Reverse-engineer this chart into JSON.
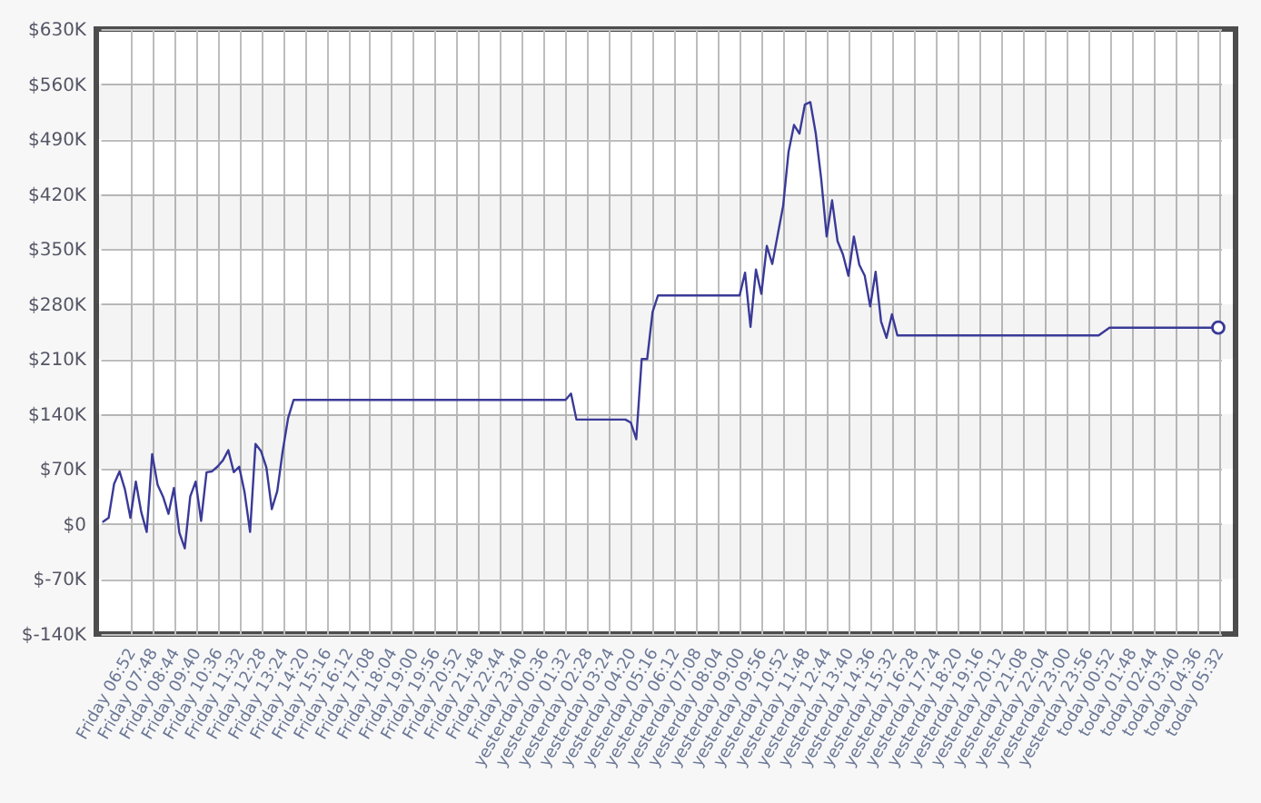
{
  "chart_data": {
    "type": "line",
    "categories": [
      null,
      null,
      null,
      null,
      null,
      "Friday 06:52",
      null,
      null,
      null,
      "Friday 07:48",
      null,
      null,
      null,
      "Friday 08:44",
      null,
      null,
      null,
      "Friday 09:40",
      null,
      null,
      null,
      "Friday 10:36",
      null,
      null,
      null,
      "Friday 11:32",
      null,
      null,
      null,
      "Friday 12:28",
      null,
      null,
      null,
      "Friday 13:24",
      null,
      null,
      null,
      "Friday 14:20",
      null,
      null,
      null,
      "Friday 15:16",
      null,
      null,
      null,
      "Friday 16:12",
      null,
      null,
      null,
      "Friday 17:08",
      null,
      null,
      null,
      "Friday 18:04",
      null,
      null,
      null,
      "Friday 19:00",
      null,
      null,
      null,
      "Friday 19:56",
      null,
      null,
      null,
      "Friday 20:52",
      null,
      null,
      null,
      "Friday 21:48",
      null,
      null,
      null,
      "Friday 22:44",
      null,
      null,
      null,
      "Friday 23:40",
      null,
      null,
      null,
      "yesterday 00:36",
      null,
      null,
      null,
      "yesterday 01:32",
      null,
      null,
      null,
      "yesterday 02:28",
      null,
      null,
      null,
      "yesterday 03:24",
      null,
      null,
      null,
      "yesterday 04:20",
      null,
      null,
      null,
      "yesterday 05:16",
      null,
      null,
      null,
      "yesterday 06:12",
      null,
      null,
      null,
      "yesterday 07:08",
      null,
      null,
      null,
      "yesterday 08:04",
      null,
      null,
      null,
      "yesterday 09:00",
      null,
      null,
      null,
      "yesterday 09:56",
      null,
      null,
      null,
      "yesterday 10:52",
      null,
      null,
      null,
      "yesterday 11:48",
      null,
      null,
      null,
      "yesterday 12:44",
      null,
      null,
      null,
      "yesterday 13:40",
      null,
      null,
      null,
      "yesterday 14:36",
      null,
      null,
      null,
      "yesterday 15:32",
      null,
      null,
      null,
      "yesterday 16:28",
      null,
      null,
      null,
      "yesterday 17:24",
      null,
      null,
      null,
      "yesterday 18:20",
      null,
      null,
      null,
      "yesterday 19:16",
      null,
      null,
      null,
      "yesterday 20:12",
      null,
      null,
      null,
      "yesterday 21:08",
      null,
      null,
      null,
      "yesterday 22:04",
      null,
      null,
      null,
      "yesterday 23:00",
      null,
      null,
      null,
      "yesterday 23:56",
      null,
      null,
      null,
      "today 00:52",
      null,
      null,
      null,
      "today 01:48",
      null,
      null,
      null,
      "today 02:44",
      null,
      null,
      null,
      "today 03:40",
      null,
      null,
      null,
      "today 04:36",
      null,
      null,
      null,
      "today 05:32"
    ],
    "ylim": [
      -140,
      630
    ],
    "yticks": [
      {
        "value": -140,
        "label": "$-140K"
      },
      {
        "value": -70,
        "label": "$-70K"
      },
      {
        "value": 0,
        "label": "$0"
      },
      {
        "value": 70,
        "label": "$70K"
      },
      {
        "value": 140,
        "label": "$140K"
      },
      {
        "value": 210,
        "label": "$210K"
      },
      {
        "value": 280,
        "label": "$280K"
      },
      {
        "value": 350,
        "label": "$350K"
      },
      {
        "value": 420,
        "label": "$420K"
      },
      {
        "value": 490,
        "label": "$490K"
      },
      {
        "value": 560,
        "label": "$560K"
      },
      {
        "value": 630,
        "label": "$630K"
      }
    ],
    "grid": true,
    "bands": [
      {
        "axis": "y",
        "from": 490,
        "to": 560,
        "color": "#f4f4f4"
      },
      {
        "axis": "y",
        "from": 350,
        "to": 420,
        "color": "#f4f4f4"
      },
      {
        "axis": "y",
        "from": 210,
        "to": 280,
        "color": "#f4f4f4"
      },
      {
        "axis": "y",
        "from": 70,
        "to": 140,
        "color": "#f4f4f4"
      },
      {
        "axis": "y",
        "from": -70,
        "to": 0,
        "color": "#f4f4f4"
      }
    ],
    "series": [
      {
        "color": "#3a3a98",
        "values": [
          3,
          8,
          51,
          67,
          44,
          8,
          54,
          15,
          -10,
          89,
          50,
          35,
          13,
          46,
          -11,
          -31,
          35,
          54,
          4,
          66,
          67,
          73,
          81,
          94,
          66,
          73,
          40,
          -10,
          102,
          93,
          72,
          19,
          42,
          93,
          135,
          158,
          158,
          158,
          158,
          158,
          158,
          158,
          158,
          158,
          158,
          158,
          158,
          158,
          158,
          158,
          158,
          158,
          158,
          158,
          158,
          158,
          158,
          158,
          158,
          158,
          158,
          158,
          158,
          158,
          158,
          158,
          158,
          158,
          158,
          158,
          158,
          158,
          158,
          158,
          158,
          158,
          158,
          158,
          158,
          158,
          158,
          158,
          158,
          158,
          158,
          158,
          166,
          133,
          133,
          133,
          133,
          133,
          133,
          133,
          133,
          133,
          133,
          129,
          108,
          210,
          210,
          270,
          291,
          291,
          291,
          291,
          291,
          291,
          291,
          291,
          291,
          291,
          291,
          291,
          291,
          291,
          291,
          291,
          320,
          251,
          324,
          293,
          354,
          331,
          368,
          405,
          474,
          508,
          497,
          534,
          537,
          497,
          439,
          366,
          412,
          360,
          343,
          316,
          366,
          330,
          316,
          277,
          321,
          258,
          237,
          267,
          240,
          240,
          240,
          240,
          240,
          240,
          240,
          240,
          240,
          240,
          240,
          240,
          240,
          240,
          240,
          240,
          240,
          240,
          240,
          240,
          240,
          240,
          240,
          240,
          240,
          240,
          240,
          240,
          240,
          240,
          240,
          240,
          240,
          240,
          240,
          240,
          240,
          240,
          245,
          250,
          250,
          250,
          250,
          250,
          250,
          250,
          250,
          250,
          250,
          250,
          250,
          250,
          250,
          250,
          250,
          250,
          250,
          250,
          250,
          250
        ]
      },
      {
        "type": "scatter",
        "marker": "circle",
        "color": "#3a3a98",
        "values": [
          null,
          null,
          null,
          null,
          null,
          null,
          null,
          null,
          null,
          null,
          null,
          null,
          null,
          null,
          null,
          null,
          null,
          null,
          null,
          null,
          null,
          null,
          null,
          null,
          null,
          null,
          null,
          null,
          null,
          null,
          null,
          null,
          null,
          null,
          null,
          null,
          null,
          null,
          null,
          null,
          null,
          null,
          null,
          null,
          null,
          null,
          null,
          null,
          null,
          null,
          null,
          null,
          null,
          null,
          null,
          null,
          null,
          null,
          null,
          null,
          null,
          null,
          null,
          null,
          null,
          null,
          null,
          null,
          null,
          null,
          null,
          null,
          null,
          null,
          null,
          null,
          null,
          null,
          null,
          null,
          null,
          null,
          null,
          null,
          null,
          null,
          null,
          null,
          null,
          null,
          null,
          null,
          null,
          null,
          null,
          null,
          null,
          null,
          null,
          null,
          null,
          null,
          null,
          null,
          null,
          null,
          null,
          null,
          null,
          null,
          null,
          null,
          null,
          null,
          null,
          null,
          null,
          null,
          null,
          null,
          null,
          null,
          null,
          null,
          null,
          null,
          null,
          null,
          null,
          null,
          null,
          null,
          null,
          null,
          null,
          null,
          null,
          null,
          null,
          null,
          null,
          null,
          null,
          null,
          null,
          null,
          null,
          null,
          null,
          null,
          null,
          null,
          null,
          null,
          null,
          null,
          null,
          null,
          null,
          null,
          null,
          null,
          null,
          null,
          null,
          null,
          null,
          null,
          null,
          null,
          null,
          null,
          null,
          null,
          null,
          null,
          null,
          null,
          null,
          null,
          null,
          null,
          null,
          null,
          null,
          null,
          null,
          null,
          null,
          null,
          null,
          null,
          null,
          null,
          null,
          null,
          null,
          null,
          null,
          null,
          null,
          null,
          null,
          null,
          null,
          250
        ]
      }
    ]
  }
}
